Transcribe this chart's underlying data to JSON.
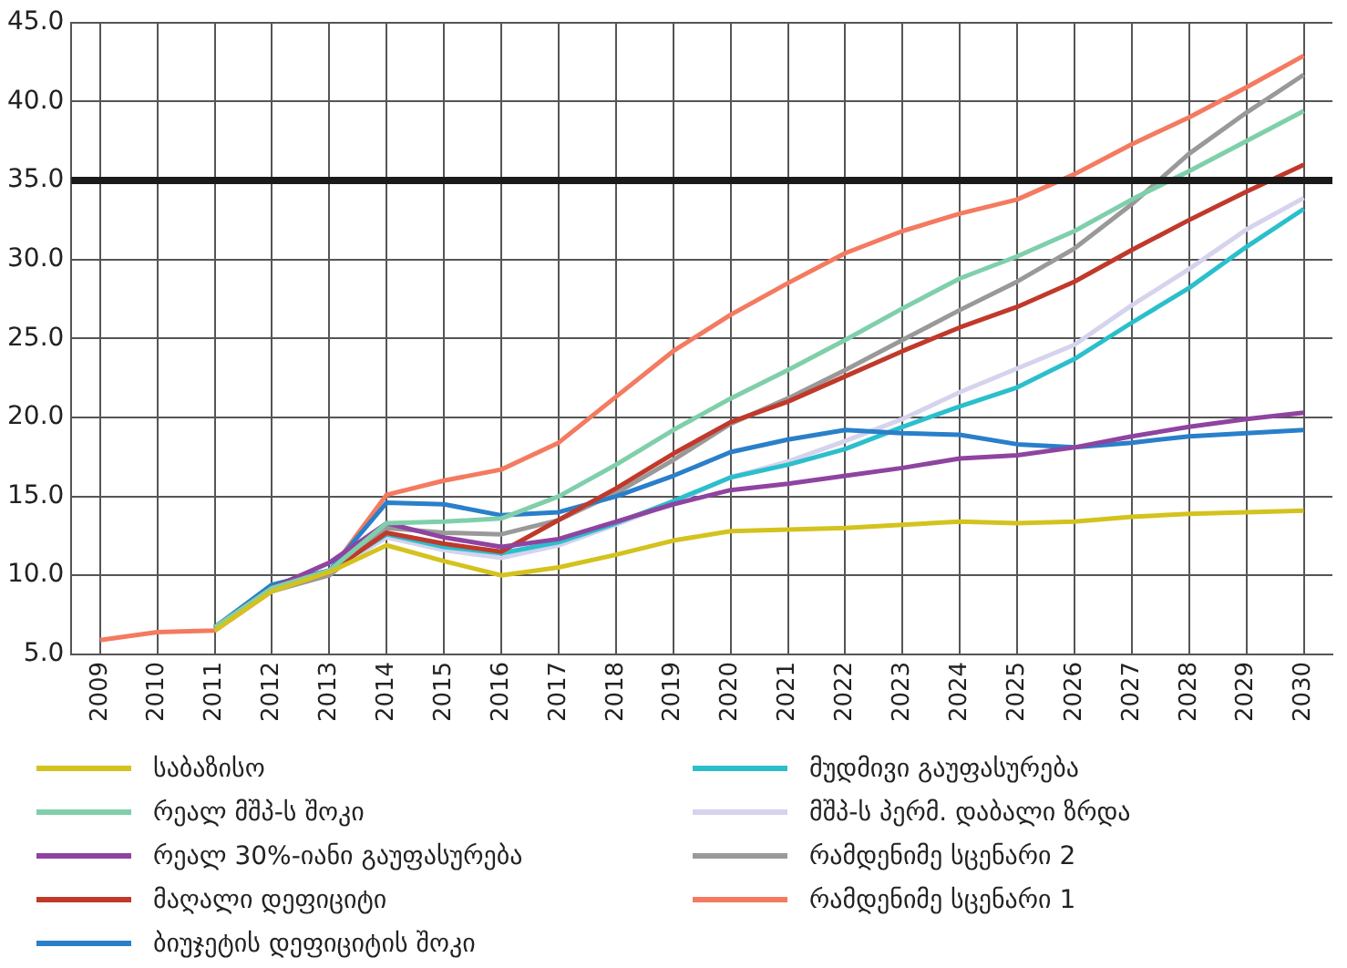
{
  "chart_data": {
    "type": "line",
    "categories": [
      "2009",
      "2010",
      "2011",
      "2012",
      "2013",
      "2014",
      "2015",
      "2016",
      "2017",
      "2018",
      "2019",
      "2020",
      "2021",
      "2022",
      "2023",
      "2024",
      "2025",
      "2026",
      "2027",
      "2028",
      "2029",
      "2030"
    ],
    "series": [
      {
        "name": "საბაზისო",
        "color": "#d4c21e",
        "values": [
          null,
          null,
          6.5,
          9.0,
          10.2,
          11.9,
          10.9,
          10.0,
          10.5,
          11.3,
          12.2,
          12.8,
          12.9,
          13.0,
          13.2,
          13.4,
          13.3,
          13.4,
          13.7,
          13.9,
          14.0,
          14.1
        ]
      },
      {
        "name": "რეალ მშპ-ს შოკი",
        "color": "#7fcfab",
        "values": [
          null,
          null,
          6.7,
          9.2,
          10.3,
          13.3,
          13.4,
          13.6,
          15.0,
          17.0,
          19.2,
          21.2,
          23.0,
          24.9,
          26.9,
          28.8,
          30.2,
          31.8,
          33.8,
          35.6,
          37.5,
          39.4
        ]
      },
      {
        "name": "რეალ 30%-იანი გაუფასურება",
        "color": "#8e44a0",
        "values": [
          null,
          null,
          6.7,
          9.2,
          10.8,
          13.3,
          12.4,
          11.8,
          12.3,
          13.4,
          14.5,
          15.4,
          15.8,
          16.3,
          16.8,
          17.4,
          17.6,
          18.1,
          18.8,
          19.4,
          19.9,
          20.3
        ]
      },
      {
        "name": "მაღალი დეფიციტი",
        "color": "#c0392b",
        "values": [
          null,
          null,
          6.6,
          9.1,
          10.2,
          12.7,
          12.0,
          11.5,
          13.5,
          15.5,
          17.7,
          19.7,
          21.0,
          22.6,
          24.2,
          25.7,
          27.0,
          28.6,
          30.6,
          32.5,
          34.3,
          36.0
        ]
      },
      {
        "name": "ბიუჯეტის დეფიციტის შოკი",
        "color": "#2a7fca",
        "values": [
          null,
          null,
          6.7,
          9.4,
          10.3,
          14.6,
          14.5,
          13.8,
          14.0,
          15.0,
          16.3,
          17.8,
          18.6,
          19.2,
          19.0,
          18.9,
          18.3,
          18.1,
          18.4,
          18.8,
          19.0,
          19.2
        ]
      },
      {
        "name": "მუდმივი გაუფასურება",
        "color": "#2bbfcc",
        "values": [
          null,
          null,
          6.7,
          9.4,
          10.3,
          12.6,
          11.8,
          11.4,
          12.1,
          13.3,
          14.7,
          16.2,
          17.0,
          18.0,
          19.4,
          20.7,
          21.9,
          23.7,
          26.0,
          28.2,
          30.8,
          33.2
        ]
      },
      {
        "name": "მშპ-ს პერმ. დაბალი ზრდა",
        "color": "#d5d3ee",
        "values": [
          null,
          null,
          6.7,
          9.3,
          10.2,
          12.4,
          11.6,
          11.1,
          11.9,
          13.2,
          14.6,
          16.2,
          17.2,
          18.5,
          19.9,
          21.6,
          23.1,
          24.6,
          27.1,
          29.4,
          31.9,
          33.9
        ]
      },
      {
        "name": "რამდენიმე სცენარი 2",
        "color": "#999999",
        "values": [
          null,
          null,
          6.7,
          9.0,
          10.0,
          13.0,
          12.7,
          12.6,
          13.5,
          15.2,
          17.3,
          19.6,
          21.2,
          23.0,
          24.9,
          26.8,
          28.6,
          30.7,
          33.5,
          36.7,
          39.3,
          41.7
        ]
      },
      {
        "name": "რამდენიმე სცენარი 1",
        "color": "#f47a60",
        "values": [
          5.9,
          6.4,
          6.5,
          9.0,
          10.2,
          15.1,
          16.0,
          16.7,
          18.4,
          21.3,
          24.2,
          26.5,
          28.5,
          30.4,
          31.8,
          32.9,
          33.8,
          35.4,
          37.3,
          39.0,
          40.9,
          42.9
        ]
      }
    ],
    "ylim": [
      5,
      45
    ],
    "yticks": [
      {
        "value": 5,
        "label": "5.0"
      },
      {
        "value": 10,
        "label": "10.0"
      },
      {
        "value": 15,
        "label": "15.0"
      },
      {
        "value": 20,
        "label": "20.0"
      },
      {
        "value": 25,
        "label": "25.0"
      },
      {
        "value": 30,
        "label": "30.0"
      },
      {
        "value": 35,
        "label": "35.0"
      },
      {
        "value": 40,
        "label": "40.0"
      },
      {
        "value": 45,
        "label": "45.0"
      }
    ],
    "ref_lines": [
      {
        "axis": "y",
        "value": 35,
        "color": "#1a1a1a"
      }
    ],
    "grid": true,
    "legend": "bottom",
    "marker": "none",
    "line_style": "solid"
  }
}
